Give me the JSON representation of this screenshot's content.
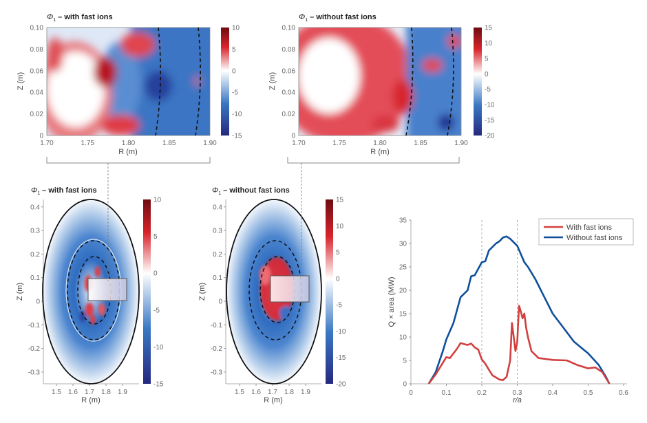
{
  "chart_data": [
    {
      "type": "heatmap",
      "title": {
        "symbol": "Φ",
        "subscript": "1",
        "text": " – with fast ions"
      },
      "xlabel": "R (m)",
      "ylabel": "Z (m)",
      "xlim": [
        1.7,
        1.9
      ],
      "ylim": [
        0,
        0.1
      ],
      "xticks": [
        "1.70",
        "1.75",
        "1.80",
        "1.85",
        "1.90"
      ],
      "yticks": [
        "0",
        "0.02",
        "0.04",
        "0.06",
        "0.08",
        "0.10"
      ],
      "colorbar": {
        "range": [
          -15,
          10
        ],
        "ticks": [
          "10",
          "5",
          "0",
          "-5",
          "-10",
          "-15"
        ]
      }
    },
    {
      "type": "heatmap",
      "title": {
        "symbol": "Φ",
        "subscript": "1",
        "text": " – without fast ions"
      },
      "xlabel": "R (m)",
      "ylabel": "Z (m)",
      "xlim": [
        1.7,
        1.9
      ],
      "ylim": [
        0,
        0.1
      ],
      "xticks": [
        "1.70",
        "1.75",
        "1.80",
        "1.85",
        "1.90"
      ],
      "yticks": [
        "0",
        "0.02",
        "0.04",
        "0.06",
        "0.08",
        "0.10"
      ],
      "colorbar": {
        "range": [
          -20,
          15
        ],
        "ticks": [
          "15",
          "10",
          "5",
          "0",
          "-5",
          "-10",
          "-15",
          "-20"
        ]
      }
    },
    {
      "type": "heatmap",
      "title": {
        "symbol": "Φ",
        "subscript": "1",
        "text": " – with fast ions"
      },
      "xlabel": "R (m)",
      "ylabel": "Z (m)",
      "xticks": [
        "1.5",
        "1.6",
        "1.7",
        "1.8",
        "1.9"
      ],
      "yticks": [
        "-0.3",
        "-0.2",
        "-0.1",
        "0",
        "0.1",
        "0.2",
        "0.3",
        "0.4"
      ],
      "colorbar": {
        "range": [
          -15,
          10
        ],
        "ticks": [
          "10",
          "5",
          "0",
          "-5",
          "-10",
          "-15"
        ]
      }
    },
    {
      "type": "heatmap",
      "title": {
        "symbol": "Φ",
        "subscript": "1",
        "text": " – without fast ions"
      },
      "xlabel": "R (m)",
      "ylabel": "Z (m)",
      "xticks": [
        "1.5",
        "1.6",
        "1.7",
        "1.8",
        "1.9"
      ],
      "yticks": [
        "-0.3",
        "-0.2",
        "-0.1",
        "0",
        "0.1",
        "0.2",
        "0.3",
        "0.4"
      ],
      "colorbar": {
        "range": [
          -20,
          15
        ],
        "ticks": [
          "15",
          "10",
          "5",
          "0",
          "-5",
          "-10",
          "-15",
          "-20"
        ]
      }
    },
    {
      "type": "line",
      "xlabel": "r/a",
      "ylabel": "Q × area (MW)",
      "xlim": [
        0,
        0.6
      ],
      "ylim": [
        0,
        35
      ],
      "xticks": [
        "0",
        "0.1",
        "0.2",
        "0.3",
        "0.4",
        "0.5",
        "0.6"
      ],
      "yticks": [
        "0",
        "5",
        "10",
        "15",
        "20",
        "25",
        "30",
        "35"
      ],
      "vlines": [
        0.2,
        0.3
      ],
      "legend": "top-right",
      "series": [
        {
          "name": "With fast ions",
          "color": "#d1403f",
          "x": [
            0.05,
            0.07,
            0.09,
            0.1,
            0.11,
            0.13,
            0.14,
            0.15,
            0.16,
            0.17,
            0.18,
            0.19,
            0.2,
            0.21,
            0.22,
            0.23,
            0.25,
            0.26,
            0.27,
            0.28,
            0.285,
            0.29,
            0.295,
            0.3,
            0.305,
            0.31,
            0.315,
            0.32,
            0.325,
            0.33,
            0.34,
            0.36,
            0.4,
            0.44,
            0.47,
            0.5,
            0.52,
            0.54,
            0.56
          ],
          "y": [
            0,
            2,
            4.5,
            5.7,
            5.5,
            7.5,
            8.7,
            8.5,
            8.3,
            8.6,
            7.8,
            7.3,
            5.2,
            4.3,
            3,
            1.8,
            0.9,
            0.8,
            1.5,
            5,
            13,
            10,
            7,
            9,
            16.7,
            15.5,
            14,
            15,
            12,
            10,
            7,
            5.5,
            5.1,
            5,
            4,
            3.3,
            3.5,
            2.5,
            0
          ]
        },
        {
          "name": "Without fast ions",
          "color": "#0f4f9a",
          "x": [
            0.05,
            0.07,
            0.09,
            0.1,
            0.12,
            0.14,
            0.16,
            0.17,
            0.18,
            0.2,
            0.21,
            0.22,
            0.24,
            0.25,
            0.26,
            0.27,
            0.28,
            0.3,
            0.32,
            0.33,
            0.35,
            0.38,
            0.4,
            0.43,
            0.46,
            0.5,
            0.53,
            0.55,
            0.56
          ],
          "y": [
            0,
            2.5,
            7,
            9.5,
            13,
            18.5,
            20,
            23,
            23.2,
            26,
            26.2,
            28.5,
            30,
            30.5,
            31.3,
            31.5,
            31,
            29.5,
            26,
            25,
            22.5,
            18,
            15,
            12,
            9,
            6.5,
            4,
            1.5,
            0
          ]
        }
      ]
    }
  ]
}
